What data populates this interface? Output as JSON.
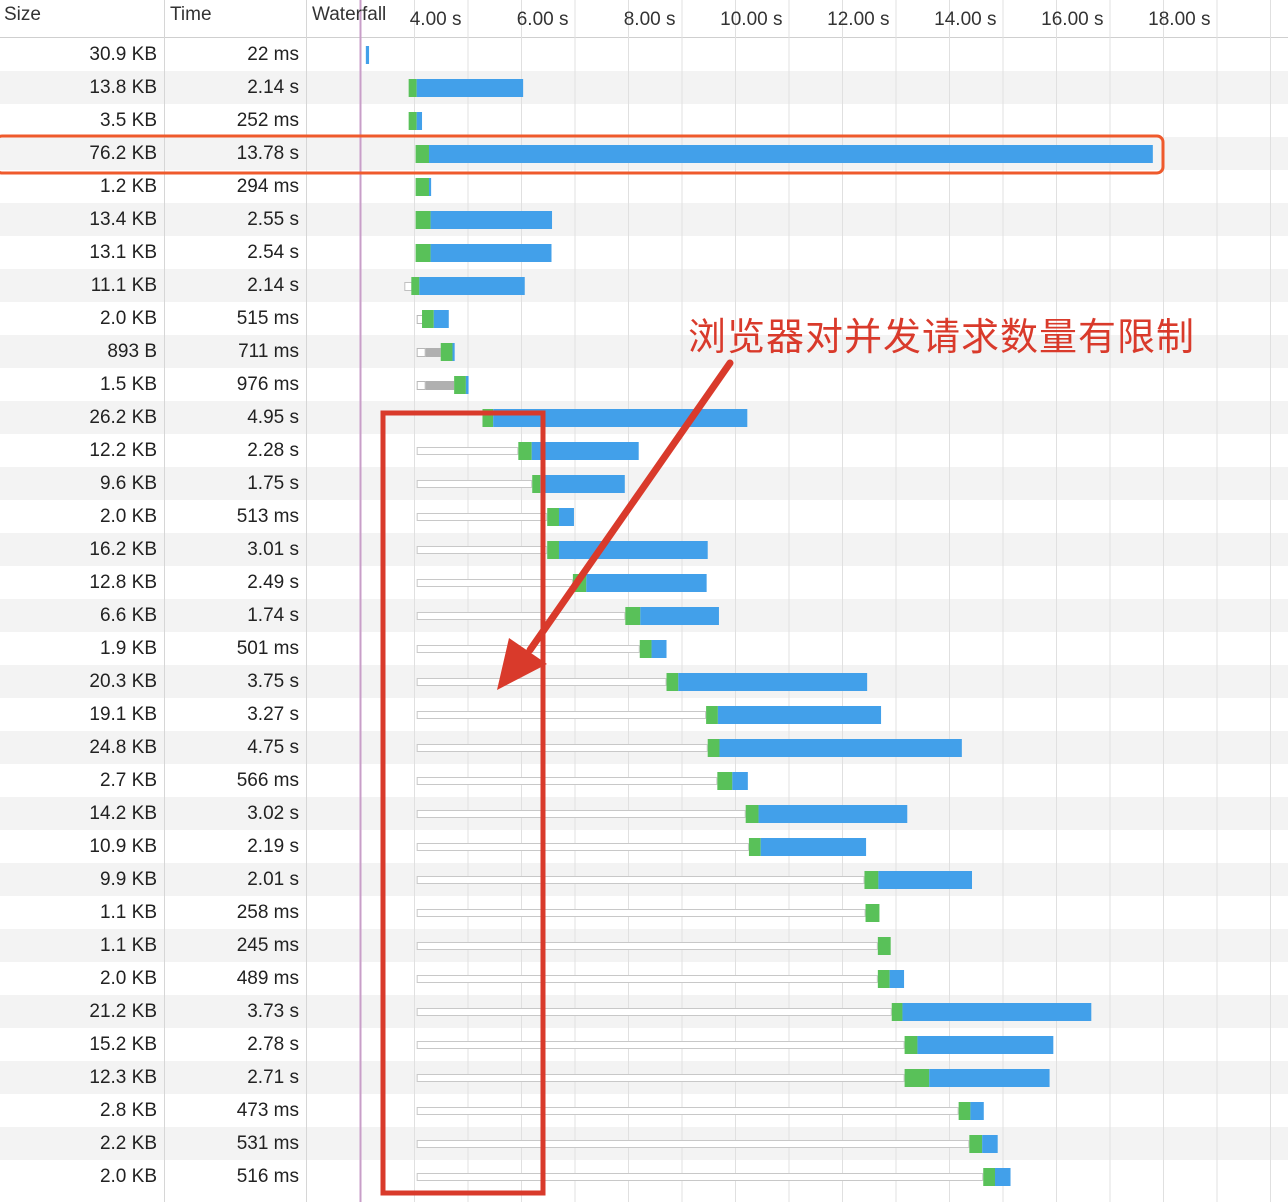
{
  "columns": {
    "size": "Size",
    "time": "Time",
    "waterfall": "Waterfall"
  },
  "timeline": {
    "ticks": [
      "4.00 s",
      "6.00 s",
      "8.00 s",
      "10.00 s",
      "12.00 s",
      "14.00 s",
      "16.00 s",
      "18.00 s"
    ],
    "tick_values": [
      4,
      6,
      8,
      10,
      12,
      14,
      16,
      18
    ],
    "dom_loaded_time": 2.0
  },
  "colors": {
    "download": "#42a0ea",
    "waiting": "#59c159",
    "stalled": "#b0b0b0",
    "queued": "#ffffff",
    "marker": "#c89ec8",
    "annotation": "#d93a2b",
    "highlight": "#ef5a2c"
  },
  "requests": [
    {
      "size": "30.9 KB",
      "time": "22 ms",
      "start": 2.1,
      "stall": 0,
      "wait": 0,
      "dl": 0.06
    },
    {
      "size": "13.8 KB",
      "time": "2.14 s",
      "start": 2.9,
      "stall": 0,
      "wait": 0.15,
      "dl": 1.99
    },
    {
      "size": "3.5 KB",
      "time": "252 ms",
      "start": 2.9,
      "stall": 0,
      "wait": 0.15,
      "dl": 0.1
    },
    {
      "size": "76.2 KB",
      "time": "13.78 s",
      "start": 3.03,
      "stall": 0,
      "wait": 0.25,
      "dl": 13.53
    },
    {
      "size": "1.2 KB",
      "time": "294 ms",
      "start": 3.03,
      "stall": 0,
      "wait": 0.25,
      "dl": 0.04
    },
    {
      "size": "13.4 KB",
      "time": "2.55 s",
      "start": 3.03,
      "stall": 0,
      "wait": 0.28,
      "dl": 2.27
    },
    {
      "size": "13.1 KB",
      "time": "2.54 s",
      "start": 3.03,
      "stall": 0,
      "wait": 0.28,
      "dl": 2.26
    },
    {
      "size": "11.1 KB",
      "time": "2.14 s",
      "start": 2.95,
      "stall": 0,
      "wait": 0.15,
      "dl": 1.97
    },
    {
      "size": "2.0 KB",
      "time": "515 ms",
      "start": 3.05,
      "stall": 0.1,
      "wait": 0.22,
      "dl": 0.28
    },
    {
      "size": "893 B",
      "time": "711 ms",
      "start": 3.05,
      "stall": 0.45,
      "wait": 0.22,
      "dl": 0.04
    },
    {
      "size": "1.5 KB",
      "time": "976 ms",
      "start": 3.05,
      "stall": 0.7,
      "wait": 0.22,
      "dl": 0.05
    },
    {
      "size": "26.2 KB",
      "time": "4.95 s",
      "start": 4.28,
      "stall": 0,
      "wait": 0.2,
      "dl": 4.75
    },
    {
      "size": "12.2 KB",
      "time": "2.28 s",
      "start": 3.05,
      "stall": 1.9,
      "wait": 0.25,
      "dl": 2.0
    },
    {
      "size": "9.6 KB",
      "time": "1.75 s",
      "start": 3.05,
      "stall": 2.16,
      "wait": 0.15,
      "dl": 1.58
    },
    {
      "size": "2.0 KB",
      "time": "513 ms",
      "start": 3.05,
      "stall": 2.44,
      "wait": 0.22,
      "dl": 0.28
    },
    {
      "size": "16.2 KB",
      "time": "3.01 s",
      "start": 3.05,
      "stall": 2.44,
      "wait": 0.22,
      "dl": 2.78
    },
    {
      "size": "12.8 KB",
      "time": "2.49 s",
      "start": 3.05,
      "stall": 2.92,
      "wait": 0.25,
      "dl": 2.25
    },
    {
      "size": "6.6 KB",
      "time": "1.74 s",
      "start": 3.05,
      "stall": 3.9,
      "wait": 0.28,
      "dl": 1.47
    },
    {
      "size": "1.9 KB",
      "time": "501 ms",
      "start": 3.05,
      "stall": 4.17,
      "wait": 0.22,
      "dl": 0.28
    },
    {
      "size": "20.3 KB",
      "time": "3.75 s",
      "start": 3.05,
      "stall": 4.67,
      "wait": 0.22,
      "dl": 3.53
    },
    {
      "size": "19.1 KB",
      "time": "3.27 s",
      "start": 3.05,
      "stall": 5.41,
      "wait": 0.22,
      "dl": 3.05
    },
    {
      "size": "24.8 KB",
      "time": "4.75 s",
      "start": 3.05,
      "stall": 5.44,
      "wait": 0.22,
      "dl": 4.53
    },
    {
      "size": "2.7 KB",
      "time": "566 ms",
      "start": 3.05,
      "stall": 5.62,
      "wait": 0.28,
      "dl": 0.29
    },
    {
      "size": "14.2 KB",
      "time": "3.02 s",
      "start": 3.05,
      "stall": 6.15,
      "wait": 0.24,
      "dl": 2.78
    },
    {
      "size": "10.9 KB",
      "time": "2.19 s",
      "start": 3.05,
      "stall": 6.21,
      "wait": 0.22,
      "dl": 1.97
    },
    {
      "size": "9.9 KB",
      "time": "2.01 s",
      "start": 3.05,
      "stall": 8.37,
      "wait": 0.26,
      "dl": 1.75
    },
    {
      "size": "1.1 KB",
      "time": "258 ms",
      "start": 3.05,
      "stall": 8.39,
      "wait": 0.26,
      "dl": 0.0
    },
    {
      "size": "1.1 KB",
      "time": "245 ms",
      "start": 3.05,
      "stall": 8.62,
      "wait": 0.24,
      "dl": 0.0
    },
    {
      "size": "2.0 KB",
      "time": "489 ms",
      "start": 3.05,
      "stall": 8.62,
      "wait": 0.22,
      "dl": 0.27
    },
    {
      "size": "21.2 KB",
      "time": "3.73 s",
      "start": 3.05,
      "stall": 8.88,
      "wait": 0.2,
      "dl": 3.53
    },
    {
      "size": "15.2 KB",
      "time": "2.78 s",
      "start": 3.05,
      "stall": 9.12,
      "wait": 0.24,
      "dl": 2.54
    },
    {
      "size": "12.3 KB",
      "time": "2.71 s",
      "start": 3.05,
      "stall": 9.12,
      "wait": 0.46,
      "dl": 2.25
    },
    {
      "size": "2.8 KB",
      "time": "473 ms",
      "start": 3.05,
      "stall": 10.13,
      "wait": 0.22,
      "dl": 0.25
    },
    {
      "size": "2.2 KB",
      "time": "531 ms",
      "start": 3.05,
      "stall": 10.33,
      "wait": 0.24,
      "dl": 0.29
    },
    {
      "size": "2.0 KB",
      "time": "516 ms",
      "start": 3.05,
      "stall": 10.59,
      "wait": 0.22,
      "dl": 0.29
    }
  ],
  "annotation": {
    "text": "浏览器对并发请求数量有限制",
    "highlighted_row": 3
  }
}
